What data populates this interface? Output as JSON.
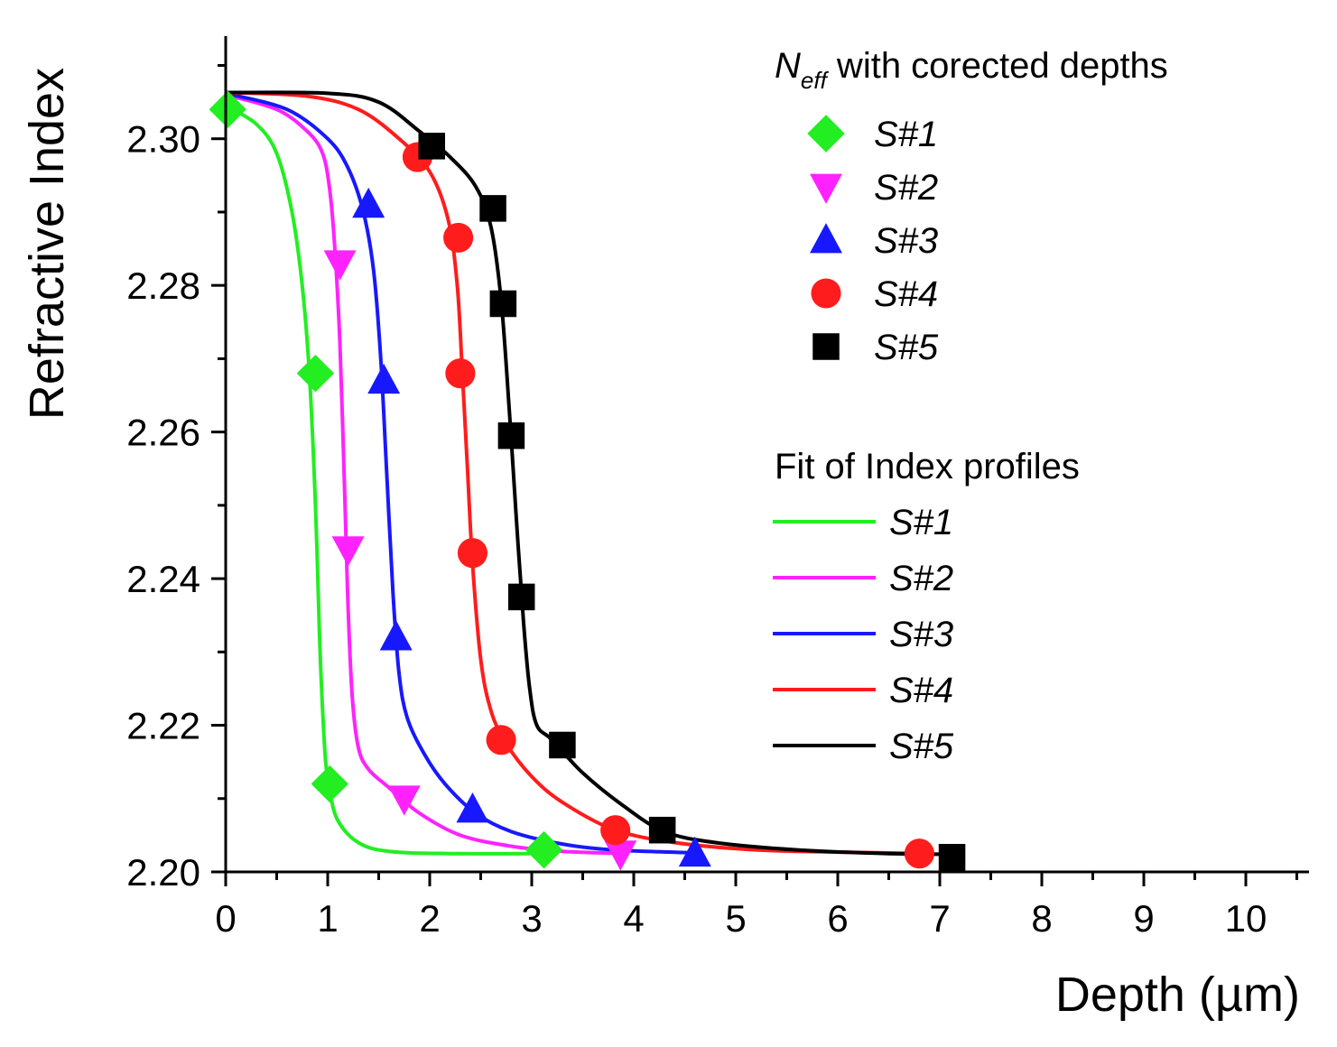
{
  "chart_data": {
    "type": "scatter",
    "xlabel": "Depth (µm)",
    "ylabel": "Refractive Index",
    "xlim": [
      0,
      10.6
    ],
    "ylim": [
      2.2,
      2.314
    ],
    "x_ticks": [
      "0",
      "1",
      "2",
      "3",
      "4",
      "5",
      "6",
      "7",
      "8",
      "9",
      "10"
    ],
    "y_ticks": [
      "2.20",
      "2.22",
      "2.24",
      "2.26",
      "2.28",
      "2.30"
    ],
    "legend_points_title": {
      "main": "N",
      "sub": "eff",
      "rest": " with corected depths"
    },
    "legend_lines_title": "Fit of Index profiles",
    "series": [
      {
        "name": "S#1",
        "color": "#22ee22",
        "marker": "diamond",
        "points": [
          [
            0.02,
            2.304
          ],
          [
            0.88,
            2.268
          ],
          [
            1.02,
            2.212
          ],
          [
            3.12,
            2.203
          ]
        ],
        "fit": [
          [
            0.0,
            2.3045
          ],
          [
            0.3,
            2.302
          ],
          [
            0.5,
            2.298
          ],
          [
            0.65,
            2.29
          ],
          [
            0.75,
            2.28
          ],
          [
            0.82,
            2.268
          ],
          [
            0.88,
            2.25
          ],
          [
            0.92,
            2.232
          ],
          [
            0.95,
            2.222
          ],
          [
            0.98,
            2.215
          ],
          [
            1.02,
            2.211
          ],
          [
            1.1,
            2.207
          ],
          [
            1.3,
            2.204
          ],
          [
            1.6,
            2.2028
          ],
          [
            2.2,
            2.2025
          ],
          [
            3.2,
            2.2025
          ]
        ]
      },
      {
        "name": "S#2",
        "color": "#ff22ff",
        "marker": "triangle-down",
        "points": [
          [
            1.12,
            2.283
          ],
          [
            1.2,
            2.244
          ],
          [
            1.75,
            2.21
          ],
          [
            3.87,
            2.2025
          ]
        ],
        "fit": [
          [
            0.0,
            2.306
          ],
          [
            0.5,
            2.304
          ],
          [
            0.8,
            2.301
          ],
          [
            0.95,
            2.298
          ],
          [
            1.02,
            2.293
          ],
          [
            1.07,
            2.285
          ],
          [
            1.12,
            2.272
          ],
          [
            1.17,
            2.25
          ],
          [
            1.2,
            2.236
          ],
          [
            1.24,
            2.224
          ],
          [
            1.3,
            2.217
          ],
          [
            1.4,
            2.214
          ],
          [
            1.6,
            2.2115
          ],
          [
            1.9,
            2.208
          ],
          [
            2.3,
            2.205
          ],
          [
            2.8,
            2.2035
          ],
          [
            3.3,
            2.2028
          ],
          [
            3.9,
            2.2025
          ]
        ]
      },
      {
        "name": "S#3",
        "color": "#1818ff",
        "marker": "triangle-up",
        "points": [
          [
            1.4,
            2.291
          ],
          [
            1.55,
            2.267
          ],
          [
            1.67,
            2.232
          ],
          [
            2.42,
            2.2085
          ],
          [
            4.6,
            2.2025
          ]
        ],
        "fit": [
          [
            0.0,
            2.3062
          ],
          [
            0.6,
            2.304
          ],
          [
            1.0,
            2.3
          ],
          [
            1.2,
            2.296
          ],
          [
            1.35,
            2.29
          ],
          [
            1.45,
            2.282
          ],
          [
            1.52,
            2.27
          ],
          [
            1.58,
            2.254
          ],
          [
            1.64,
            2.238
          ],
          [
            1.7,
            2.227
          ],
          [
            1.78,
            2.221
          ],
          [
            1.95,
            2.216
          ],
          [
            2.15,
            2.212
          ],
          [
            2.45,
            2.208
          ],
          [
            2.8,
            2.2055
          ],
          [
            3.3,
            2.2038
          ],
          [
            3.8,
            2.203
          ],
          [
            4.6,
            2.2026
          ]
        ]
      },
      {
        "name": "S#4",
        "color": "#ff1c1c",
        "marker": "circle",
        "points": [
          [
            1.88,
            2.2975
          ],
          [
            2.28,
            2.2865
          ],
          [
            2.3,
            2.268
          ],
          [
            2.42,
            2.2435
          ],
          [
            2.7,
            2.218
          ],
          [
            3.82,
            2.2057
          ],
          [
            6.8,
            2.2025
          ]
        ],
        "fit": [
          [
            0.0,
            2.3063
          ],
          [
            0.8,
            2.3058
          ],
          [
            1.3,
            2.304
          ],
          [
            1.7,
            2.3
          ],
          [
            2.0,
            2.2955
          ],
          [
            2.18,
            2.289
          ],
          [
            2.27,
            2.28
          ],
          [
            2.32,
            2.268
          ],
          [
            2.37,
            2.255
          ],
          [
            2.42,
            2.242
          ],
          [
            2.5,
            2.229
          ],
          [
            2.6,
            2.222
          ],
          [
            2.75,
            2.2175
          ],
          [
            3.0,
            2.213
          ],
          [
            3.3,
            2.2095
          ],
          [
            3.8,
            2.2058
          ],
          [
            4.4,
            2.204
          ],
          [
            5.2,
            2.203
          ],
          [
            6.0,
            2.2027
          ],
          [
            6.9,
            2.2025
          ]
        ]
      },
      {
        "name": "S#5",
        "color": "#000000",
        "marker": "square",
        "points": [
          [
            2.02,
            2.299
          ],
          [
            2.62,
            2.2905
          ],
          [
            2.72,
            2.2775
          ],
          [
            2.8,
            2.2595
          ],
          [
            2.9,
            2.2375
          ],
          [
            3.3,
            2.2173
          ],
          [
            4.28,
            2.2057
          ],
          [
            7.12,
            2.202
          ]
        ],
        "fit": [
          [
            0.0,
            2.3063
          ],
          [
            1.0,
            2.3062
          ],
          [
            1.5,
            2.305
          ],
          [
            1.9,
            2.301
          ],
          [
            2.2,
            2.2975
          ],
          [
            2.45,
            2.2935
          ],
          [
            2.6,
            2.288
          ],
          [
            2.7,
            2.278
          ],
          [
            2.78,
            2.263
          ],
          [
            2.85,
            2.248
          ],
          [
            2.92,
            2.234
          ],
          [
            2.98,
            2.225
          ],
          [
            3.05,
            2.22
          ],
          [
            3.2,
            2.218
          ],
          [
            3.5,
            2.2135
          ],
          [
            3.9,
            2.209
          ],
          [
            4.3,
            2.2055
          ],
          [
            4.8,
            2.204
          ],
          [
            5.6,
            2.203
          ],
          [
            6.5,
            2.2025
          ],
          [
            7.2,
            2.2024
          ]
        ]
      }
    ]
  }
}
